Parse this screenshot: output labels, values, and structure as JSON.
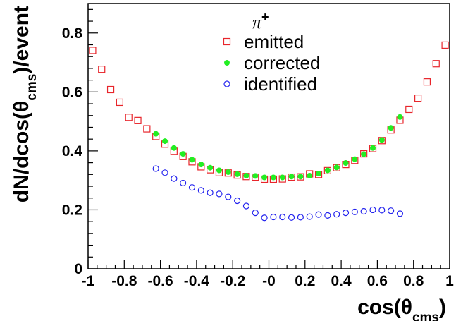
{
  "chart_data": {
    "type": "scatter",
    "xlabel": "cos(θ_cms)",
    "ylabel": "dN/dcos(θ_cms)/event",
    "xlim": [
      -1,
      1
    ],
    "ylim": [
      0,
      0.9
    ],
    "grid": false,
    "legend_position": "top-center",
    "legend_title": "π⁺",
    "x_ticks": [
      {
        "value": -1,
        "label": "-1"
      },
      {
        "value": -0.8,
        "label": "-0.8"
      },
      {
        "value": -0.6,
        "label": "-0.6"
      },
      {
        "value": -0.4,
        "label": "-0.4"
      },
      {
        "value": -0.2,
        "label": "-0.2"
      },
      {
        "value": 0,
        "label": "-0"
      },
      {
        "value": 0.2,
        "label": "0.2"
      },
      {
        "value": 0.4,
        "label": "0.4"
      },
      {
        "value": 0.6,
        "label": "0.6"
      },
      {
        "value": 0.8,
        "label": "0.8"
      },
      {
        "value": 1,
        "label": "1"
      }
    ],
    "y_ticks": [
      {
        "value": 0,
        "label": "0"
      },
      {
        "value": 0.2,
        "label": "0.2"
      },
      {
        "value": 0.4,
        "label": "0.4"
      },
      {
        "value": 0.6,
        "label": "0.6"
      },
      {
        "value": 0.8,
        "label": "0.8"
      }
    ],
    "series": [
      {
        "name": "emitted",
        "marker": "open-square",
        "color": "#e8252b",
        "points": [
          [
            -0.975,
            0.741
          ],
          [
            -0.925,
            0.677
          ],
          [
            -0.875,
            0.608
          ],
          [
            -0.825,
            0.565
          ],
          [
            -0.775,
            0.514
          ],
          [
            -0.725,
            0.503
          ],
          [
            -0.675,
            0.475
          ],
          [
            -0.625,
            0.449
          ],
          [
            -0.575,
            0.423
          ],
          [
            -0.525,
            0.399
          ],
          [
            -0.475,
            0.381
          ],
          [
            -0.425,
            0.363
          ],
          [
            -0.375,
            0.346
          ],
          [
            -0.325,
            0.336
          ],
          [
            -0.275,
            0.326
          ],
          [
            -0.225,
            0.325
          ],
          [
            -0.175,
            0.318
          ],
          [
            -0.125,
            0.313
          ],
          [
            -0.075,
            0.311
          ],
          [
            -0.025,
            0.304
          ],
          [
            0.025,
            0.304
          ],
          [
            0.075,
            0.305
          ],
          [
            0.125,
            0.311
          ],
          [
            0.175,
            0.312
          ],
          [
            0.225,
            0.322
          ],
          [
            0.275,
            0.32
          ],
          [
            0.325,
            0.333
          ],
          [
            0.375,
            0.343
          ],
          [
            0.425,
            0.354
          ],
          [
            0.475,
            0.368
          ],
          [
            0.525,
            0.39
          ],
          [
            0.575,
            0.408
          ],
          [
            0.625,
            0.435
          ],
          [
            0.675,
            0.471
          ],
          [
            0.725,
            0.504
          ],
          [
            0.775,
            0.541
          ],
          [
            0.825,
            0.579
          ],
          [
            0.875,
            0.634
          ],
          [
            0.925,
            0.696
          ],
          [
            0.975,
            0.759
          ]
        ]
      },
      {
        "name": "corrected",
        "marker": "filled-circle",
        "color": "#22ee22",
        "points": [
          [
            -0.625,
            0.458
          ],
          [
            -0.575,
            0.433
          ],
          [
            -0.525,
            0.41
          ],
          [
            -0.475,
            0.39
          ],
          [
            -0.425,
            0.37
          ],
          [
            -0.375,
            0.354
          ],
          [
            -0.325,
            0.343
          ],
          [
            -0.275,
            0.334
          ],
          [
            -0.225,
            0.328
          ],
          [
            -0.175,
            0.321
          ],
          [
            -0.125,
            0.316
          ],
          [
            -0.075,
            0.315
          ],
          [
            -0.025,
            0.31
          ],
          [
            0.025,
            0.31
          ],
          [
            0.075,
            0.31
          ],
          [
            0.125,
            0.313
          ],
          [
            0.175,
            0.313
          ],
          [
            0.225,
            0.316
          ],
          [
            0.275,
            0.323
          ],
          [
            0.325,
            0.334
          ],
          [
            0.375,
            0.344
          ],
          [
            0.425,
            0.359
          ],
          [
            0.475,
            0.372
          ],
          [
            0.525,
            0.389
          ],
          [
            0.575,
            0.41
          ],
          [
            0.625,
            0.437
          ],
          [
            0.675,
            0.478
          ],
          [
            0.725,
            0.515
          ]
        ]
      },
      {
        "name": "identified",
        "marker": "open-circle",
        "color": "#2222ee",
        "points": [
          [
            -0.625,
            0.34
          ],
          [
            -0.575,
            0.326
          ],
          [
            -0.525,
            0.306
          ],
          [
            -0.475,
            0.291
          ],
          [
            -0.425,
            0.276
          ],
          [
            -0.375,
            0.266
          ],
          [
            -0.325,
            0.258
          ],
          [
            -0.275,
            0.254
          ],
          [
            -0.225,
            0.244
          ],
          [
            -0.175,
            0.231
          ],
          [
            -0.125,
            0.213
          ],
          [
            -0.075,
            0.19
          ],
          [
            -0.025,
            0.173
          ],
          [
            0.025,
            0.176
          ],
          [
            0.075,
            0.176
          ],
          [
            0.125,
            0.174
          ],
          [
            0.175,
            0.175
          ],
          [
            0.225,
            0.177
          ],
          [
            0.275,
            0.184
          ],
          [
            0.325,
            0.181
          ],
          [
            0.375,
            0.185
          ],
          [
            0.425,
            0.19
          ],
          [
            0.475,
            0.193
          ],
          [
            0.525,
            0.195
          ],
          [
            0.575,
            0.2
          ],
          [
            0.625,
            0.199
          ],
          [
            0.675,
            0.197
          ],
          [
            0.725,
            0.187
          ]
        ]
      }
    ]
  }
}
